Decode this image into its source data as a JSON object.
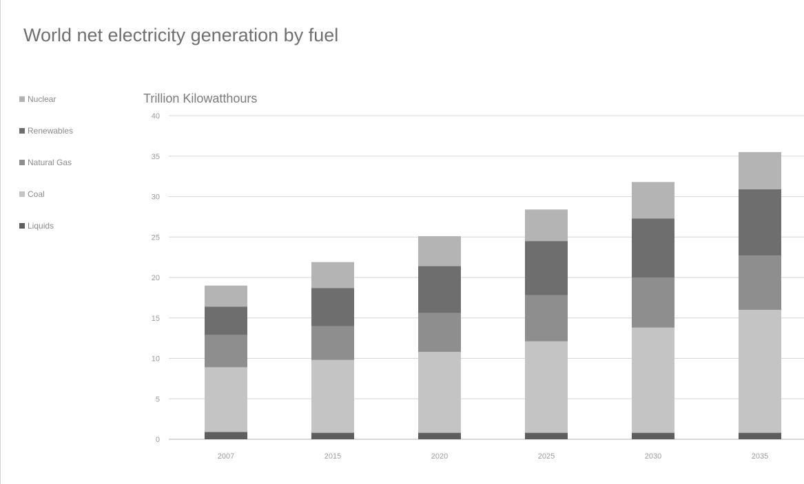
{
  "chart_data": {
    "type": "bar",
    "stacked": true,
    "title": "World net electricity generation by fuel",
    "ylabel": "Trillion Kilowatthours",
    "xlabel": "",
    "categories": [
      "2007",
      "2015",
      "2020",
      "2025",
      "2030",
      "2035"
    ],
    "ylim": [
      0,
      40
    ],
    "yticks": [
      0,
      5,
      10,
      15,
      20,
      25,
      30,
      35,
      40
    ],
    "grid": true,
    "legend_position": "left",
    "series": [
      {
        "name": "Liquids",
        "color": "#5e5e5e",
        "values": [
          0.9,
          0.8,
          0.8,
          0.8,
          0.8,
          0.8
        ]
      },
      {
        "name": "Coal",
        "color": "#c4c4c4",
        "values": [
          8.0,
          9.0,
          10.0,
          11.3,
          13.0,
          15.2
        ]
      },
      {
        "name": "Natural Gas",
        "color": "#8e8e8e",
        "values": [
          4.0,
          4.2,
          4.8,
          5.7,
          6.2,
          6.7
        ]
      },
      {
        "name": "Renewables",
        "color": "#6e6e6e",
        "values": [
          3.5,
          4.7,
          5.8,
          6.7,
          7.3,
          8.2
        ]
      },
      {
        "name": "Nuclear",
        "color": "#b4b4b4",
        "values": [
          2.6,
          3.2,
          3.7,
          3.9,
          4.5,
          4.6
        ]
      }
    ],
    "legend_order": [
      "Nuclear",
      "Renewables",
      "Natural Gas",
      "Coal",
      "Liquids"
    ]
  }
}
